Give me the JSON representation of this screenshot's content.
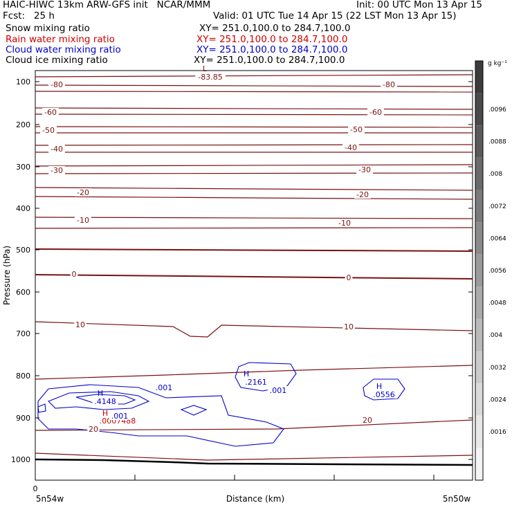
{
  "header": {
    "model_title": "HAIC-HIWC 13km ARW-GFS init   NCAR/MMM",
    "init_time": "Init: 00 UTC Mon 13 Apr 15",
    "forecast_label": "Fcst:   25 h",
    "valid_time": "Valid: 01 UTC Tue 14 Apr 15 (22 LST Mon 13 Apr 15)"
  },
  "fields": [
    {
      "label": "Snow mixing ratio",
      "xy": "XY= 251.0,100.0 to 284.7,100.0",
      "color": "#000000"
    },
    {
      "label": "Rain water mixing ratio",
      "xy": "XY= 251.0,100.0 to 284.7,100.0",
      "color": "#cc0000"
    },
    {
      "label": "Cloud water mixing ratio",
      "xy": "XY= 251.0,100.0 to 284.7,100.0",
      "color": "#0000cc"
    },
    {
      "label": "Cloud ice mixing ratio",
      "xy": "XY= 251.0,100.0 to 284.7,100.0",
      "color": "#000000"
    }
  ],
  "chart_data": {
    "type": "contour",
    "xlabel": "Distance (km)",
    "ylabel": "Pressure (hPa)",
    "x_ticks": [
      {
        "label": "0",
        "value": 0
      }
    ],
    "x_end_labels": {
      "left": "5n54w",
      "right": "5n50w"
    },
    "y_axis": {
      "scale": "log",
      "range_hPa": [
        1050,
        70
      ],
      "ticks": [
        100,
        200,
        300,
        400,
        500,
        600,
        700,
        800,
        900,
        1000
      ]
    },
    "colorbar": {
      "unit": "g kg⁻¹",
      "labels": [
        ".0096",
        ".0088",
        ".008",
        ".0072",
        ".0064",
        ".0056",
        ".0048",
        ".004",
        ".0032",
        ".0024",
        ".0016"
      ],
      "colors": [
        "#3c3c3c",
        "#4a4a4a",
        "#5a5a5a",
        "#6a6a6a",
        "#7a7a7a",
        "#8a8a8a",
        "#9a9a9a",
        "#aaaaaa",
        "#bababa",
        "#cacaca",
        "#dadada",
        "#e8e8e8",
        "#f4f4f4"
      ]
    },
    "temperature_contours": [
      {
        "value": -80,
        "label": "-80"
      },
      {
        "value": -60,
        "label": "-60"
      },
      {
        "value": -50,
        "label": "-50"
      },
      {
        "value": -40,
        "label": "-40"
      },
      {
        "value": -30,
        "label": "-30"
      },
      {
        "value": -20,
        "label": "-20"
      },
      {
        "value": -10,
        "label": "-10"
      },
      {
        "value": 0,
        "label": "0"
      },
      {
        "value": 10,
        "label": "10"
      },
      {
        "value": 20,
        "label": "20"
      }
    ],
    "extrema": [
      {
        "kind": "L",
        "value": "-83.85",
        "field": "temperature"
      },
      {
        "kind": "H",
        "value": ".4148",
        "field": "cloud_water"
      },
      {
        "kind": "H",
        "value": ".2161",
        "field": "cloud_water"
      },
      {
        "kind": "H",
        "value": ".0556",
        "field": "cloud_water"
      },
      {
        "kind": "H",
        "value": ".0007488",
        "field": "rain_water"
      }
    ],
    "cloud_contour_labels": [
      ".001",
      ".001",
      ".001"
    ],
    "colors": {
      "temperature": "#7a1010",
      "cloud_water": "#0000cc",
      "rain_water": "#cc0000",
      "terrain": "#000000"
    }
  }
}
